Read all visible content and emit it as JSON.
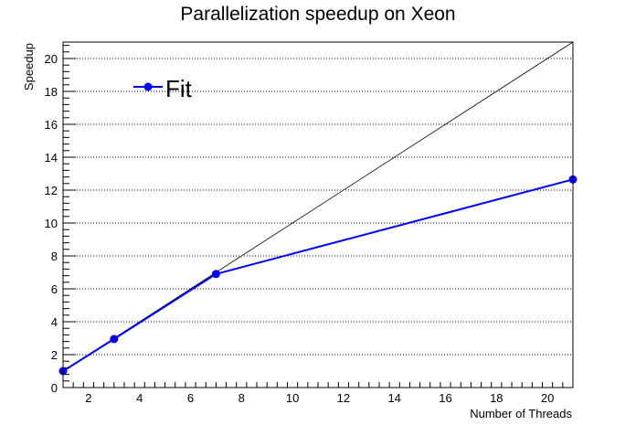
{
  "chart_data": {
    "type": "line",
    "title": "Parallelization speedup on Xeon",
    "xlabel": "Number of Threads",
    "ylabel": "Speedup",
    "xlim": [
      1,
      21
    ],
    "ylim": [
      0,
      21
    ],
    "xticks": [
      2,
      4,
      6,
      8,
      10,
      12,
      14,
      16,
      18,
      20
    ],
    "yticks": [
      0,
      2,
      4,
      6,
      8,
      10,
      12,
      14,
      16,
      18,
      20
    ],
    "grid": "horizontal dotted",
    "legend_position": "top-left",
    "series": [
      {
        "name": "Fit",
        "color": "#0000ff",
        "x": [
          1,
          3,
          7,
          21
        ],
        "y": [
          1.0,
          2.95,
          6.9,
          12.65
        ]
      }
    ],
    "reference_line": {
      "color": "#000000",
      "x": [
        1,
        21
      ],
      "y": [
        1,
        21
      ]
    }
  }
}
